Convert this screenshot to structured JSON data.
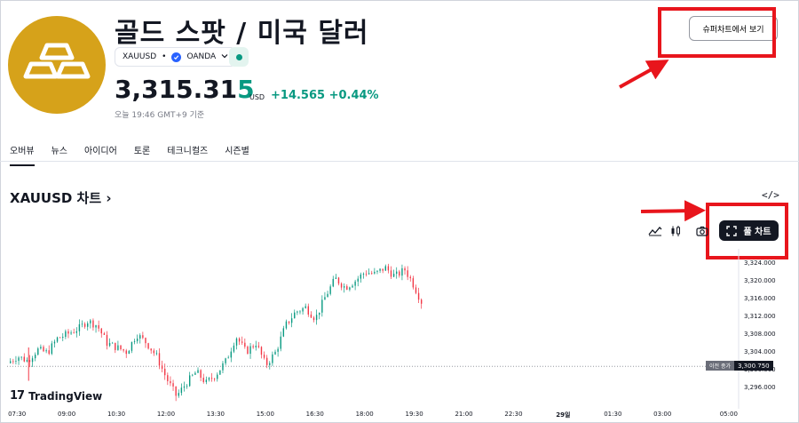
{
  "header": {
    "title": "골드 스팟 / 미국 달러",
    "symbol": "XAUUSD",
    "separator": "•",
    "broker": "OANDA",
    "market_status": "open",
    "price_main": "3,315.31",
    "price_last_digit": "5",
    "currency": "USD",
    "change": "+14.565 +0.44%",
    "timestamp": "오늘 19:46 GMT+9 기준",
    "super_chart_button": "슈퍼차트에서 보기"
  },
  "tabs": [
    {
      "label": "오버뷰",
      "active": true
    },
    {
      "label": "뉴스",
      "active": false
    },
    {
      "label": "아이디어",
      "active": false
    },
    {
      "label": "토론",
      "active": false
    },
    {
      "label": "테크니컬즈",
      "active": false
    },
    {
      "label": "시즌별",
      "active": false
    }
  ],
  "chart_section": {
    "title": "XAUUSD 차트",
    "title_chevron": "›",
    "embed_icon": "</>",
    "full_chart_button": "풀 차트",
    "tools": [
      "area-chart-icon",
      "candles-icon",
      "camera-icon"
    ],
    "watermark": "TradingView",
    "watermark_mark": "17",
    "prev_close_label": "이전 종가",
    "prev_close_value": "3,300.750"
  },
  "colors": {
    "up": "#089981",
    "down": "#f23645",
    "gold": "#d6a21a",
    "annotation": "#e8151c"
  },
  "chart_data": {
    "type": "candlestick",
    "title": "",
    "xlabel": "",
    "ylabel": "",
    "ylim": [
      3292,
      3326
    ],
    "y_ticks": [
      "3,324.000",
      "3,320.000",
      "3,316.000",
      "3,312.000",
      "3,308.000",
      "3,304.000",
      "3,300.000",
      "3,296.000"
    ],
    "y_tick_values": [
      3324,
      3320,
      3316,
      3312,
      3308,
      3304,
      3300,
      3296
    ],
    "x_ticks": [
      "07:30",
      "09:00",
      "10:30",
      "12:00",
      "13:30",
      "15:00",
      "16:30",
      "18:00",
      "19:30",
      "21:00",
      "22:30",
      "29일",
      "01:30",
      "03:00",
      "05:00"
    ],
    "x_tick_hours": [
      7.5,
      9,
      10.5,
      12,
      13.5,
      15,
      16.5,
      18,
      19.5,
      21,
      22.5,
      24,
      25.5,
      27,
      29
    ],
    "xlim_hours": [
      7.2,
      29.3
    ],
    "previous_close": 3300.75,
    "price_path": [
      [
        7.3,
        3301.5
      ],
      [
        7.6,
        3303.0
      ],
      [
        7.9,
        3302.0
      ],
      [
        8.2,
        3304.5
      ],
      [
        8.5,
        3303.8
      ],
      [
        8.8,
        3307.0
      ],
      [
        9.1,
        3308.0
      ],
      [
        9.5,
        3309.5
      ],
      [
        9.7,
        3311.0
      ],
      [
        10.0,
        3310.0
      ],
      [
        10.3,
        3306.0
      ],
      [
        10.6,
        3305.0
      ],
      [
        10.9,
        3304.0
      ],
      [
        11.2,
        3308.0
      ],
      [
        11.5,
        3306.0
      ],
      [
        11.8,
        3303.0
      ],
      [
        12.1,
        3298.0
      ],
      [
        12.4,
        3294.0
      ],
      [
        12.7,
        3297.0
      ],
      [
        13.0,
        3299.5
      ],
      [
        13.3,
        3297.0
      ],
      [
        13.6,
        3299.0
      ],
      [
        13.9,
        3302.0
      ],
      [
        14.2,
        3307.5
      ],
      [
        14.5,
        3304.0
      ],
      [
        14.8,
        3306.0
      ],
      [
        15.1,
        3301.0
      ],
      [
        15.4,
        3304.0
      ],
      [
        15.7,
        3310.0
      ],
      [
        16.0,
        3313.0
      ],
      [
        16.3,
        3314.0
      ],
      [
        16.6,
        3311.5
      ],
      [
        16.9,
        3316.5
      ],
      [
        17.2,
        3320.5
      ],
      [
        17.5,
        3318.5
      ],
      [
        17.8,
        3320.0
      ],
      [
        18.1,
        3322.0
      ],
      [
        18.4,
        3321.5
      ],
      [
        18.7,
        3323.0
      ],
      [
        19.0,
        3321.0
      ],
      [
        19.3,
        3322.5
      ],
      [
        19.5,
        3320.0
      ],
      [
        19.7,
        3317.0
      ],
      [
        19.78,
        3315.3
      ]
    ]
  }
}
